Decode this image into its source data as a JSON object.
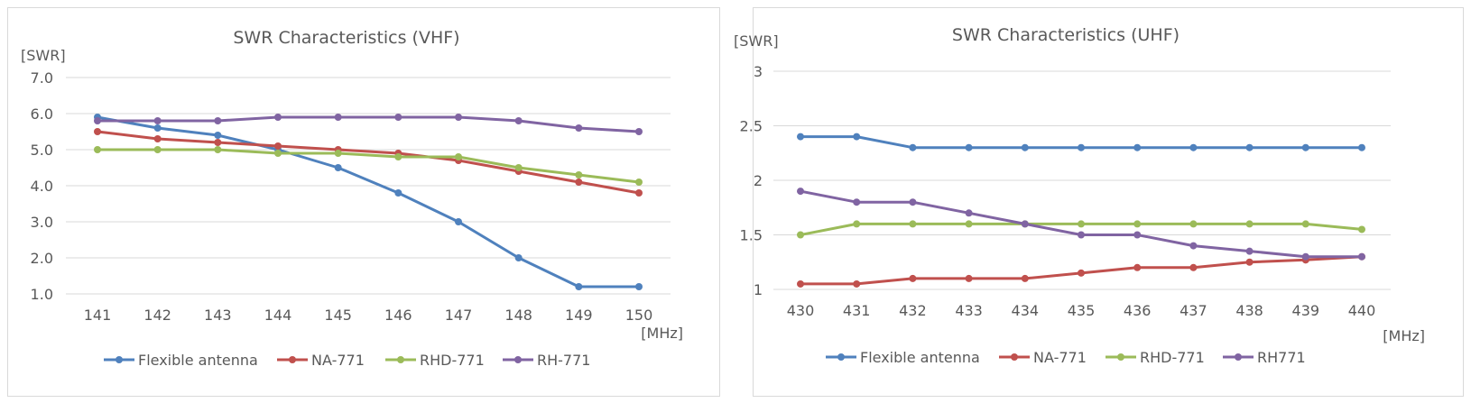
{
  "chart_data": [
    {
      "type": "line",
      "title": "SWR Characteristics (VHF)",
      "ylabel": "[SWR]",
      "xlabel": "[MHz]",
      "categories": [
        "141",
        "142",
        "143",
        "144",
        "145",
        "146",
        "147",
        "148",
        "149",
        "150"
      ],
      "ylim": [
        1.0,
        7.0
      ],
      "yticks": [
        "1.0",
        "2.0",
        "3.0",
        "4.0",
        "5.0",
        "6.0",
        "7.0"
      ],
      "ytick_values": [
        1,
        2,
        3,
        4,
        5,
        6,
        7
      ],
      "grid": true,
      "legend_position": "bottom",
      "series": [
        {
          "name": "Flexible antenna",
          "color": "#4f81bd",
          "values": [
            5.9,
            5.6,
            5.4,
            5.0,
            4.5,
            3.8,
            3.0,
            2.0,
            1.2,
            1.2
          ]
        },
        {
          "name": "NA-771",
          "color": "#c0504d",
          "values": [
            5.5,
            5.3,
            5.2,
            5.1,
            5.0,
            4.9,
            4.7,
            4.4,
            4.1,
            3.8
          ]
        },
        {
          "name": "RHD-771",
          "color": "#9bbb59",
          "values": [
            5.0,
            5.0,
            5.0,
            4.9,
            4.9,
            4.8,
            4.8,
            4.5,
            4.3,
            4.1
          ]
        },
        {
          "name": "RH-771",
          "color": "#8064a2",
          "values": [
            5.8,
            5.8,
            5.8,
            5.9,
            5.9,
            5.9,
            5.9,
            5.8,
            5.6,
            5.5
          ]
        }
      ]
    },
    {
      "type": "line",
      "title": "SWR Characteristics (UHF)",
      "ylabel": "[SWR]",
      "xlabel": "[MHz]",
      "categories": [
        "430",
        "431",
        "432",
        "433",
        "434",
        "435",
        "436",
        "437",
        "438",
        "439",
        "440"
      ],
      "ylim": [
        1,
        3
      ],
      "yticks": [
        "1",
        "1.5",
        "2",
        "2.5",
        "3"
      ],
      "ytick_values": [
        1,
        1.5,
        2,
        2.5,
        3
      ],
      "grid": true,
      "legend_position": "bottom",
      "series": [
        {
          "name": "Flexible antenna",
          "color": "#4f81bd",
          "values": [
            2.4,
            2.4,
            2.3,
            2.3,
            2.3,
            2.3,
            2.3,
            2.3,
            2.3,
            2.3,
            2.3
          ]
        },
        {
          "name": "NA-771",
          "color": "#c0504d",
          "values": [
            1.05,
            1.05,
            1.1,
            1.1,
            1.1,
            1.15,
            1.2,
            1.2,
            1.25,
            1.27,
            1.3
          ]
        },
        {
          "name": "RHD-771",
          "color": "#9bbb59",
          "values": [
            1.5,
            1.6,
            1.6,
            1.6,
            1.6,
            1.6,
            1.6,
            1.6,
            1.6,
            1.6,
            1.55
          ]
        },
        {
          "name": "RH771",
          "color": "#8064a2",
          "values": [
            1.9,
            1.8,
            1.8,
            1.7,
            1.6,
            1.5,
            1.5,
            1.4,
            1.35,
            1.3,
            1.3
          ]
        }
      ]
    }
  ]
}
